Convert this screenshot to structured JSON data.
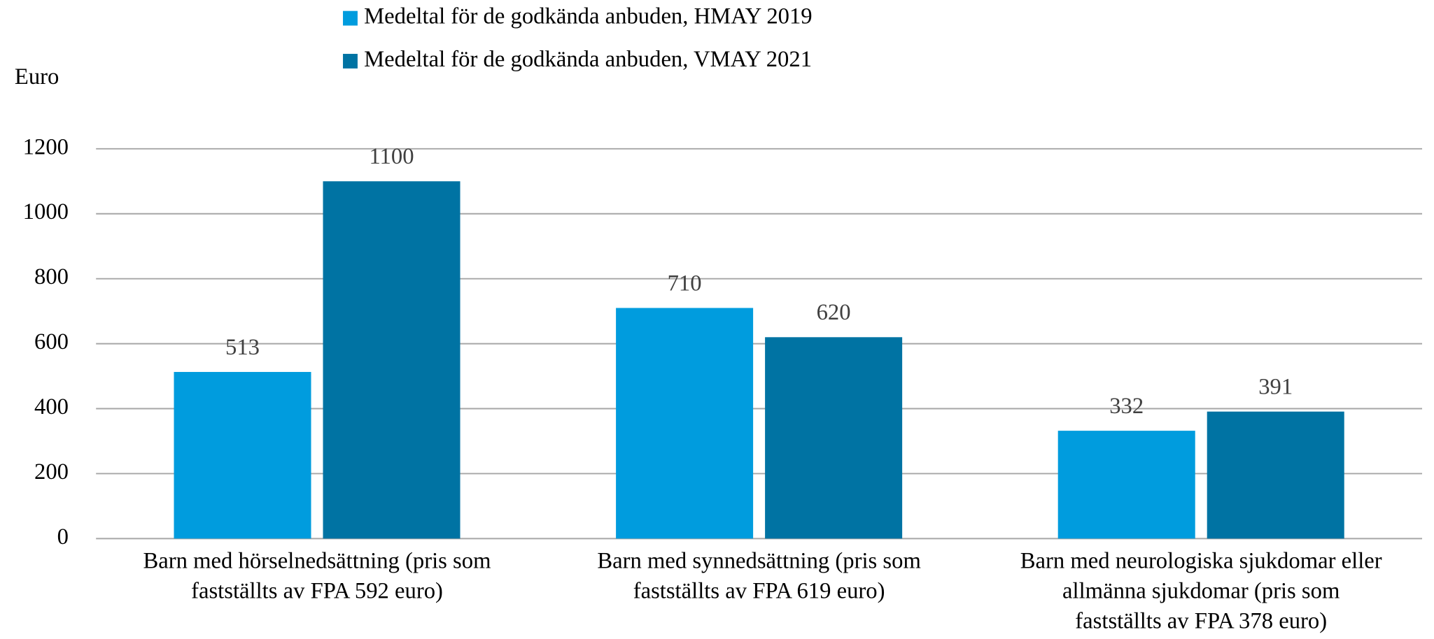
{
  "chart_data": {
    "type": "bar",
    "y_axis_label": "Euro",
    "categories": [
      "Barn med hörselnedsättning (pris som\nfastställts av FPA 592 euro)",
      "Barn med synnedsättning (pris som\nfastställts av FPA 619 euro)",
      "Barn med neurologiska sjukdomar eller\nallmänna sjukdomar (pris som\nfastställts av FPA 378 euro)"
    ],
    "series": [
      {
        "name": "Medeltal för de godkända anbuden, HMAY 2019",
        "color": "#009cde",
        "values": [
          513,
          710,
          332
        ]
      },
      {
        "name": "Medeltal för de godkända anbuden, VMAY 2021",
        "color": "#0073a3",
        "values": [
          1100,
          620,
          391
        ]
      }
    ],
    "ylim": [
      0,
      1200
    ],
    "yticks": [
      0,
      200,
      400,
      600,
      800,
      1000,
      1200
    ],
    "grid": true
  }
}
